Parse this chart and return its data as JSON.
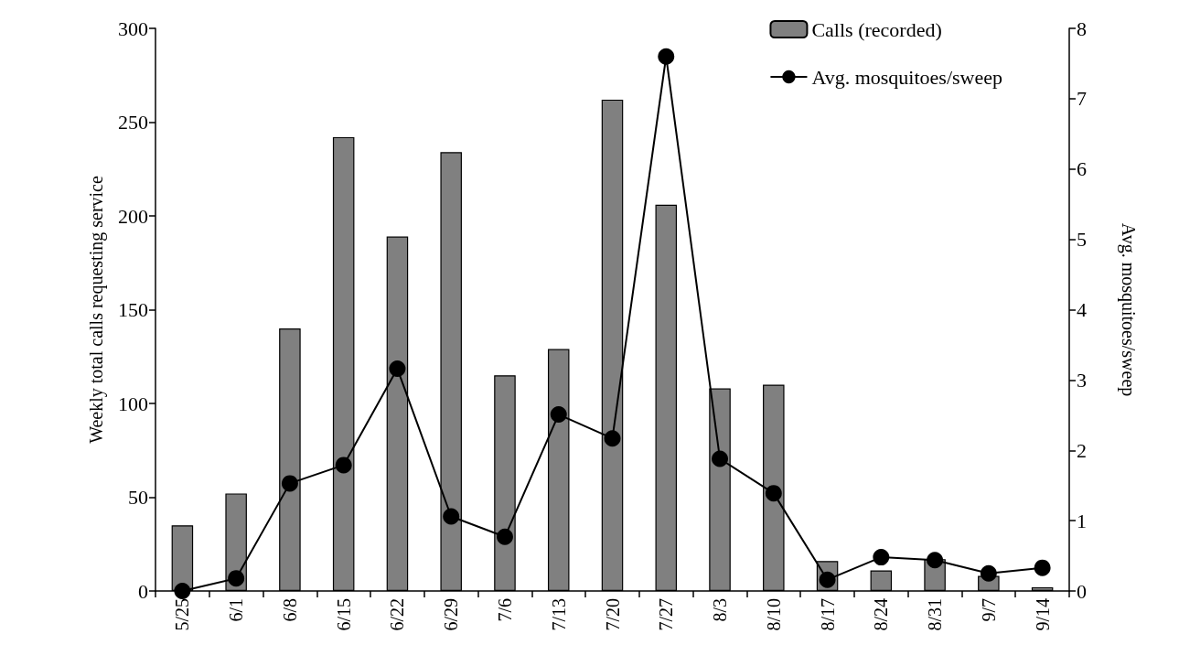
{
  "chart_data": {
    "type": "bar",
    "ylabel": "Weekly total calls requesting service",
    "y2label": "Avg. mosquitoes/sweep",
    "categories": [
      "5/25",
      "6/1",
      "6/8",
      "6/15",
      "6/22",
      "6/29",
      "7/6",
      "7/13",
      "7/20",
      "7/27",
      "8/3",
      "8/10",
      "8/17",
      "8/24",
      "8/31",
      "9/7",
      "9/14"
    ],
    "series": [
      {
        "name": "Calls (recorded)",
        "color": "#808080",
        "values": [
          35,
          52,
          140,
          242,
          189,
          234,
          115,
          129,
          262,
          206,
          108,
          110,
          16,
          11,
          17,
          8,
          2
        ]
      },
      {
        "name": "Avg. mosquitoes/sweep",
        "type": "line",
        "axis": "y2",
        "color": "#000000",
        "marker": "circle",
        "values": [
          0,
          0.18,
          1.53,
          1.79,
          3.16,
          1.06,
          0.77,
          2.51,
          2.17,
          7.6,
          1.88,
          1.39,
          0.16,
          0.48,
          0.44,
          0.25,
          0.33
        ]
      }
    ],
    "ylim": [
      0,
      300
    ],
    "yticks": [
      0,
      50,
      100,
      150,
      200,
      250,
      300
    ],
    "y2lim": [
      0,
      8
    ],
    "y2ticks": [
      0,
      1,
      2,
      3,
      4,
      5,
      6,
      7,
      8
    ],
    "grid": false,
    "legend": "top right"
  }
}
